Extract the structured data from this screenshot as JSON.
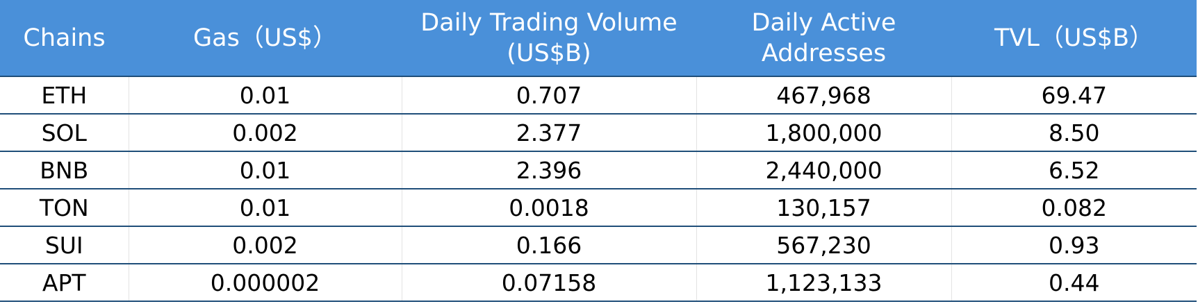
{
  "colors": {
    "header_bg": "#4a90d9",
    "header_text": "#ffffff",
    "row_border": "#1f4e79",
    "cell_text": "#000000"
  },
  "chart_data": {
    "type": "table",
    "columns": [
      "Chains",
      "Gas（US$）",
      "Daily Trading Volume (US$B)",
      "Daily Active Addresses",
      "TVL（US$B）"
    ],
    "rows": [
      [
        "ETH",
        "0.01",
        "0.707",
        "467,968",
        "69.47"
      ],
      [
        "SOL",
        "0.002",
        "2.377",
        "1,800,000",
        "8.50"
      ],
      [
        "BNB",
        "0.01",
        "2.396",
        "2,440,000",
        "6.52"
      ],
      [
        "TON",
        "0.01",
        "0.0018",
        "130,157",
        "0.082"
      ],
      [
        "SUI",
        "0.002",
        "0.166",
        "567,230",
        "0.93"
      ],
      [
        "APT",
        "0.000002",
        "0.07158",
        "1,123,133",
        "0.44"
      ]
    ]
  }
}
